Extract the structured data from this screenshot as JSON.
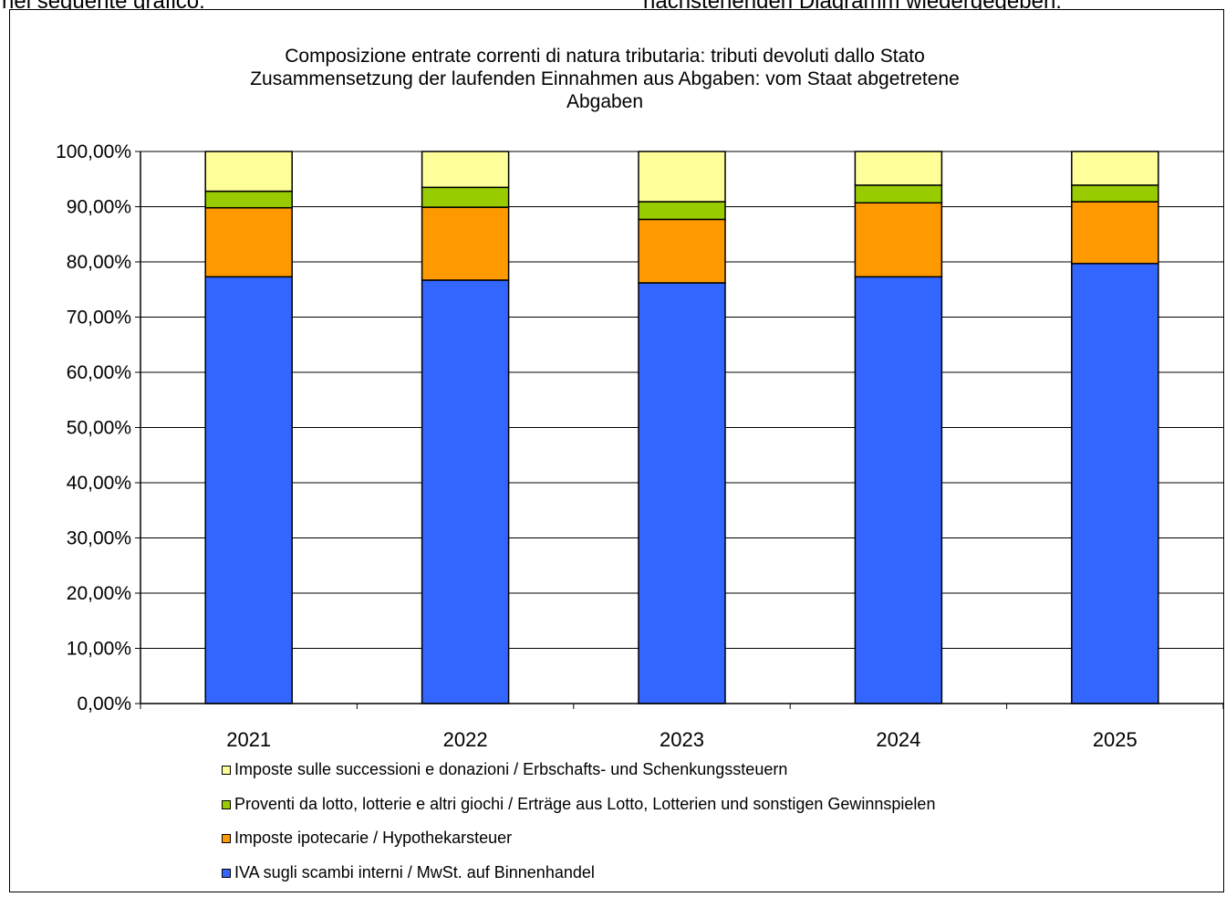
{
  "page": {
    "top_left_fragment": "nel seguente grafico:",
    "top_right_fragment": "nachstehenden Diagramm wiedergegeben:"
  },
  "chart_data": {
    "type": "bar",
    "stacked": true,
    "title": [
      "Composizione entrate correnti di natura tributaria: tributi devoluti dallo Stato",
      "Zusammensetzung der laufenden Einnahmen aus Abgaben: vom Staat abgetretene",
      "Abgaben"
    ],
    "categories": [
      "2021",
      "2022",
      "2023",
      "2024",
      "2025"
    ],
    "y_ticks": [
      "0,00%",
      "10,00%",
      "20,00%",
      "30,00%",
      "40,00%",
      "50,00%",
      "60,00%",
      "70,00%",
      "80,00%",
      "90,00%",
      "100,00%"
    ],
    "ylim": [
      0,
      100
    ],
    "grid": true,
    "legend_position": "bottom",
    "series": [
      {
        "name": "IVA sugli scambi interni / MwSt. auf Binnenhandel",
        "color": "#3366ff",
        "values": [
          77.3,
          76.7,
          76.2,
          77.3,
          79.7
        ]
      },
      {
        "name": "Imposte ipotecarie / Hypothekarsteuer",
        "color": "#ff9900",
        "values": [
          12.5,
          13.2,
          11.5,
          13.4,
          11.2
        ]
      },
      {
        "name": "Proventi da lotto, lotterie e altri giochi / Erträge aus Lotto, Lotterien und sonstigen Gewinnspielen",
        "color": "#99cc00",
        "values": [
          3.0,
          3.6,
          3.2,
          3.2,
          3.0
        ]
      },
      {
        "name": "Imposte sulle successioni e donazioni / Erbschafts- und Schenkungssteuern",
        "color": "#ffff99",
        "values": [
          7.2,
          6.5,
          9.1,
          6.1,
          6.1
        ]
      }
    ]
  }
}
